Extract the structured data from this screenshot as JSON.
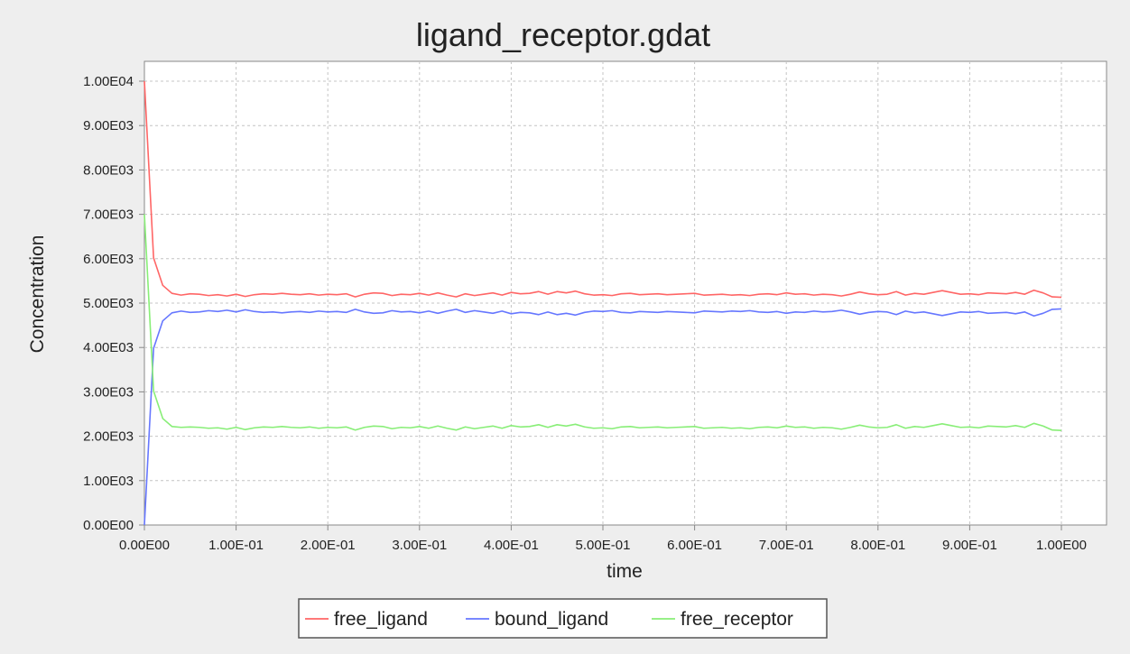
{
  "chart_data": {
    "type": "line",
    "title": "ligand_receptor.gdat",
    "xlabel": "time",
    "ylabel": "Concentration",
    "xlim": [
      0,
      1.0
    ],
    "ylim": [
      0,
      10500
    ],
    "grid": true,
    "legend_position": "bottom",
    "x_ticks": [
      0,
      0.1,
      0.2,
      0.3,
      0.4,
      0.5,
      0.6,
      0.7,
      0.8,
      0.9,
      1.0
    ],
    "x_tick_labels": [
      "0.00E00",
      "1.00E-01",
      "2.00E-01",
      "3.00E-01",
      "4.00E-01",
      "5.00E-01",
      "6.00E-01",
      "7.00E-01",
      "8.00E-01",
      "9.00E-01",
      "1.00E00"
    ],
    "y_ticks": [
      0,
      1000,
      2000,
      3000,
      4000,
      5000,
      6000,
      7000,
      8000,
      9000,
      10000
    ],
    "y_tick_labels": [
      "0.00E00",
      "1.00E03",
      "2.00E03",
      "3.00E03",
      "4.00E03",
      "5.00E03",
      "6.00E03",
      "7.00E03",
      "8.00E03",
      "9.00E03",
      "1.00E04"
    ],
    "x": [
      0,
      0.01,
      0.02,
      0.03,
      0.04,
      0.05,
      0.06,
      0.07,
      0.08,
      0.09,
      0.1,
      0.11,
      0.12,
      0.13,
      0.14,
      0.15,
      0.16,
      0.17,
      0.18,
      0.19,
      0.2,
      0.21,
      0.22,
      0.23,
      0.24,
      0.25,
      0.26,
      0.27,
      0.28,
      0.29,
      0.3,
      0.31,
      0.32,
      0.33,
      0.34,
      0.35,
      0.36,
      0.37,
      0.38,
      0.39,
      0.4,
      0.41,
      0.42,
      0.43,
      0.44,
      0.45,
      0.46,
      0.47,
      0.48,
      0.49,
      0.5,
      0.51,
      0.52,
      0.53,
      0.54,
      0.55,
      0.56,
      0.57,
      0.58,
      0.59,
      0.6,
      0.61,
      0.62,
      0.63,
      0.64,
      0.65,
      0.66,
      0.67,
      0.68,
      0.69,
      0.7,
      0.71,
      0.72,
      0.73,
      0.74,
      0.75,
      0.76,
      0.77,
      0.78,
      0.79,
      0.8,
      0.81,
      0.82,
      0.83,
      0.84,
      0.85,
      0.86,
      0.87,
      0.88,
      0.89,
      0.9,
      0.91,
      0.92,
      0.93,
      0.94,
      0.95,
      0.96,
      0.97,
      0.98,
      0.99,
      1.0
    ],
    "series": [
      {
        "name": "free_ligand",
        "color": "#ff6666",
        "values": [
          10000,
          6020,
          5400,
          5220,
          5180,
          5210,
          5200,
          5170,
          5190,
          5160,
          5200,
          5150,
          5190,
          5210,
          5200,
          5220,
          5200,
          5190,
          5210,
          5180,
          5200,
          5190,
          5210,
          5140,
          5200,
          5230,
          5220,
          5170,
          5200,
          5190,
          5220,
          5180,
          5230,
          5180,
          5140,
          5210,
          5170,
          5200,
          5230,
          5180,
          5240,
          5210,
          5220,
          5260,
          5200,
          5260,
          5230,
          5270,
          5210,
          5180,
          5190,
          5170,
          5210,
          5220,
          5190,
          5200,
          5210,
          5190,
          5200,
          5210,
          5220,
          5180,
          5190,
          5200,
          5180,
          5190,
          5170,
          5200,
          5210,
          5190,
          5230,
          5200,
          5210,
          5180,
          5200,
          5190,
          5160,
          5200,
          5250,
          5210,
          5190,
          5200,
          5260,
          5180,
          5220,
          5200,
          5240,
          5280,
          5240,
          5200,
          5210,
          5190,
          5230,
          5220,
          5210,
          5240,
          5200,
          5290,
          5230,
          5140,
          5130
        ]
      },
      {
        "name": "bound_ligand",
        "color": "#6677ff",
        "values": [
          0,
          3980,
          4600,
          4780,
          4820,
          4790,
          4800,
          4830,
          4810,
          4840,
          4800,
          4850,
          4810,
          4790,
          4800,
          4780,
          4800,
          4810,
          4790,
          4820,
          4800,
          4810,
          4790,
          4860,
          4800,
          4770,
          4780,
          4830,
          4800,
          4810,
          4780,
          4820,
          4770,
          4820,
          4860,
          4790,
          4830,
          4800,
          4770,
          4820,
          4760,
          4790,
          4780,
          4740,
          4800,
          4740,
          4770,
          4730,
          4790,
          4820,
          4810,
          4830,
          4790,
          4780,
          4810,
          4800,
          4790,
          4810,
          4800,
          4790,
          4780,
          4820,
          4810,
          4800,
          4820,
          4810,
          4830,
          4800,
          4790,
          4810,
          4770,
          4800,
          4790,
          4820,
          4800,
          4810,
          4840,
          4800,
          4750,
          4790,
          4810,
          4800,
          4740,
          4820,
          4780,
          4800,
          4760,
          4720,
          4760,
          4800,
          4790,
          4810,
          4770,
          4780,
          4790,
          4760,
          4800,
          4710,
          4770,
          4860,
          4870
        ]
      },
      {
        "name": "free_receptor",
        "color": "#88ee77",
        "values": [
          7000,
          3020,
          2400,
          2220,
          2200,
          2210,
          2200,
          2180,
          2190,
          2160,
          2200,
          2150,
          2190,
          2210,
          2200,
          2220,
          2200,
          2190,
          2210,
          2180,
          2200,
          2190,
          2210,
          2140,
          2200,
          2230,
          2220,
          2170,
          2200,
          2190,
          2220,
          2180,
          2230,
          2180,
          2140,
          2210,
          2170,
          2200,
          2230,
          2180,
          2240,
          2210,
          2220,
          2260,
          2200,
          2260,
          2230,
          2270,
          2210,
          2180,
          2190,
          2170,
          2210,
          2220,
          2190,
          2200,
          2210,
          2190,
          2200,
          2210,
          2220,
          2180,
          2190,
          2200,
          2180,
          2190,
          2170,
          2200,
          2210,
          2190,
          2230,
          2200,
          2210,
          2180,
          2200,
          2190,
          2160,
          2200,
          2250,
          2210,
          2190,
          2200,
          2260,
          2180,
          2220,
          2200,
          2240,
          2280,
          2240,
          2200,
          2210,
          2190,
          2230,
          2220,
          2210,
          2240,
          2200,
          2290,
          2230,
          2140,
          2130
        ]
      }
    ]
  }
}
